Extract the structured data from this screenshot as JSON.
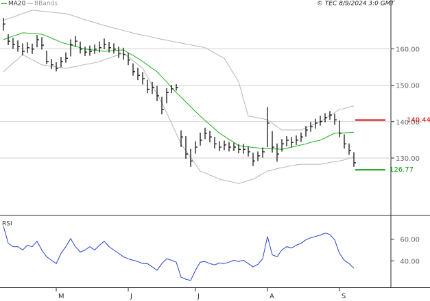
{
  "header": {
    "text": "© TEC 8/9/2024 3:0 GMT"
  },
  "chart_data": [
    {
      "type": "hlc",
      "color": "#000000",
      "grid": true,
      "ylim": [
        114.6,
        173.4
      ],
      "yticks": [
        {
          "value": 130,
          "label": "130.00"
        },
        {
          "value": 140,
          "label": "140.00"
        },
        {
          "value": 150,
          "label": "150.00"
        },
        {
          "value": 160,
          "label": "160.00"
        }
      ],
      "close": [
        166.8,
        162.1,
        161.2,
        160.6,
        159.3,
        160.3,
        159.9,
        162.5,
        161.0,
        156.5,
        155.6,
        154.6,
        156.5,
        157.4,
        161.2,
        162.1,
        159.9,
        159.1,
        159.3,
        159.9,
        160.3,
        161.2,
        160.3,
        159.9,
        158.8,
        158.4,
        156.9,
        153.7,
        152.7,
        151.8,
        148.9,
        149.4,
        147.1,
        143.3,
        148.0,
        149.0,
        149.4,
        135.8,
        131.1,
        129.2,
        133.0,
        134.9,
        136.8,
        135.8,
        133.9,
        133.0,
        133.6,
        133.0,
        133.0,
        132.4,
        132.4,
        131.7,
        129.2,
        130.6,
        131.7,
        139.6,
        133.0,
        131.1,
        133.9,
        134.9,
        134.3,
        134.9,
        135.8,
        137.7,
        138.6,
        139.6,
        140.0,
        141.1,
        141.8,
        140.5,
        136.8,
        133.9,
        132.1,
        128.7
      ],
      "high": [
        168.5,
        164.0,
        163.0,
        162.3,
        161.5,
        161.8,
        161.4,
        163.8,
        163.2,
        159.5,
        157.2,
        156.3,
        157.8,
        159.0,
        162.6,
        163.5,
        162.0,
        160.6,
        160.9,
        161.2,
        162.0,
        162.8,
        161.9,
        161.5,
        160.6,
        160.3,
        158.9,
        156.0,
        154.8,
        153.6,
        151.5,
        150.9,
        149.8,
        146.8,
        149.2,
        150.1,
        150.3,
        137.6,
        136.0,
        132.5,
        134.6,
        137.0,
        138.3,
        137.5,
        135.8,
        134.6,
        134.8,
        134.4,
        134.2,
        133.8,
        133.9,
        133.2,
        131.5,
        131.8,
        132.9,
        144.0,
        137.4,
        134.0,
        135.2,
        136.0,
        135.8,
        136.2,
        137.0,
        138.8,
        139.9,
        140.8,
        141.6,
        142.3,
        142.9,
        142.2,
        140.3,
        136.5,
        134.0,
        131.6
      ],
      "low": [
        165.0,
        161.0,
        160.0,
        159.2,
        158.2,
        158.9,
        158.6,
        160.4,
        159.8,
        155.8,
        154.4,
        153.8,
        154.9,
        156.2,
        157.9,
        160.6,
        158.7,
        158.0,
        158.1,
        158.6,
        159.0,
        159.9,
        159.0,
        158.7,
        157.5,
        157.0,
        155.5,
        152.6,
        151.4,
        150.2,
        147.8,
        147.6,
        145.6,
        142.0,
        145.0,
        147.8,
        148.5,
        133.0,
        129.8,
        127.6,
        131.2,
        133.4,
        135.2,
        134.3,
        132.6,
        131.9,
        132.2,
        131.8,
        131.9,
        131.3,
        131.2,
        130.4,
        127.8,
        129.2,
        130.1,
        133.0,
        131.5,
        129.0,
        131.8,
        133.2,
        133.0,
        133.6,
        134.4,
        135.9,
        137.2,
        138.1,
        138.9,
        139.8,
        140.5,
        139.1,
        135.7,
        132.6,
        130.9,
        127.6
      ],
      "series": [
        {
          "name": "MA20",
          "color": "#19b019",
          "values": [
            162.5,
            163.0,
            163.5,
            163.9,
            164.4,
            164.3,
            164.2,
            164.1,
            164.0,
            163.5,
            162.9,
            162.4,
            161.8,
            161.4,
            161.0,
            160.7,
            160.3,
            159.9,
            159.8,
            159.6,
            159.5,
            159.3,
            159.4,
            159.5,
            159.6,
            159.7,
            158.9,
            158.2,
            157.4,
            156.5,
            155.6,
            154.6,
            153.7,
            152.3,
            150.9,
            149.4,
            148.0,
            146.7,
            145.4,
            144.1,
            142.8,
            141.5,
            140.3,
            139.2,
            138.0,
            136.8,
            136.0,
            135.1,
            134.3,
            133.4,
            133.2,
            133.1,
            132.9,
            132.8,
            132.6,
            132.6,
            132.5,
            132.5,
            132.4,
            132.7,
            133.0,
            133.3,
            133.6,
            133.9,
            134.3,
            134.6,
            134.9,
            135.5,
            136.2,
            136.8,
            136.9,
            136.9,
            137.0,
            137.1
          ]
        },
        {
          "name": "BBands",
          "color": "#b4b4b4",
          "upper": [
            167.8,
            168.3,
            168.7,
            169.2,
            169.7,
            170.1,
            170.6,
            170.5,
            170.3,
            170.2,
            170.1,
            169.9,
            169.8,
            169.7,
            169.3,
            168.9,
            168.4,
            168.0,
            167.6,
            167.2,
            166.8,
            166.4,
            166.1,
            165.7,
            165.4,
            165.0,
            164.7,
            164.3,
            164.0,
            163.7,
            163.5,
            163.2,
            162.9,
            162.6,
            162.4,
            162.1,
            161.8,
            161.6,
            161.3,
            161.1,
            160.8,
            160.6,
            160.3,
            159.6,
            158.8,
            158.1,
            157.4,
            155.2,
            153.1,
            150.9,
            146.2,
            141.5,
            141.3,
            141.0,
            140.8,
            140.5,
            139.6,
            138.6,
            137.7,
            137.7,
            137.7,
            137.7,
            137.7,
            138.3,
            138.9,
            139.4,
            140.0,
            140.8,
            141.7,
            142.5,
            143.3,
            143.6,
            144.0,
            144.3
          ],
          "lower": [
            153.7,
            154.9,
            156.1,
            157.2,
            158.4,
            157.7,
            157.0,
            156.3,
            155.6,
            155.4,
            155.2,
            155.0,
            154.8,
            154.6,
            154.9,
            155.1,
            155.4,
            155.7,
            155.9,
            156.2,
            156.5,
            157.0,
            157.4,
            157.9,
            158.3,
            158.8,
            157.8,
            156.7,
            155.7,
            154.6,
            152.3,
            149.9,
            147.6,
            145.2,
            142.4,
            139.6,
            136.7,
            133.9,
            132.0,
            130.2,
            128.3,
            126.4,
            125.9,
            125.3,
            124.8,
            124.2,
            123.9,
            123.6,
            123.3,
            123.0,
            123.4,
            123.8,
            124.2,
            124.9,
            125.7,
            126.4,
            126.7,
            127.1,
            127.4,
            127.6,
            127.9,
            128.1,
            128.3,
            128.3,
            128.3,
            128.3,
            128.3,
            128.5,
            128.8,
            129.0,
            129.2,
            129.5,
            129.9,
            130.2
          ]
        }
      ],
      "levels": [
        {
          "value": 140.44,
          "label": "140.44",
          "color": "#cc0000"
        },
        {
          "value": 126.77,
          "label": "126.77",
          "color": "#009900"
        }
      ]
    },
    {
      "type": "line",
      "title": "RSI",
      "color": "#1f3fcf",
      "grid": false,
      "ylim": [
        15.6,
        81.25
      ],
      "yticks": [
        {
          "value": 40,
          "label": "40.00"
        },
        {
          "value": 60,
          "label": "60.00"
        }
      ],
      "categories": [
        null,
        null,
        null,
        null,
        null,
        null,
        null,
        null,
        null,
        null,
        null,
        "M",
        null,
        null,
        null,
        null,
        null,
        null,
        null,
        null,
        null,
        null,
        null,
        null,
        null,
        null,
        "J",
        null,
        null,
        null,
        null,
        null,
        null,
        null,
        null,
        null,
        null,
        null,
        null,
        null,
        "J",
        null,
        null,
        null,
        null,
        null,
        null,
        null,
        null,
        null,
        null,
        null,
        null,
        null,
        null,
        "A",
        null,
        null,
        null,
        null,
        null,
        null,
        null,
        null,
        null,
        null,
        null,
        null,
        null,
        null,
        "S",
        null,
        null,
        null
      ],
      "values": [
        71.9,
        56.3,
        53.1,
        53.1,
        50.0,
        54.4,
        53.1,
        58.1,
        50.0,
        43.8,
        40.6,
        37.5,
        46.9,
        53.1,
        60.6,
        53.1,
        48.1,
        50.0,
        53.1,
        50.0,
        54.4,
        58.1,
        53.1,
        50.0,
        46.9,
        43.8,
        41.9,
        40.6,
        39.4,
        37.5,
        37.5,
        34.4,
        31.3,
        37.5,
        41.9,
        40.6,
        38.8,
        25.0,
        23.1,
        21.9,
        31.3,
        38.8,
        39.4,
        37.5,
        36.3,
        38.1,
        37.5,
        38.8,
        40.6,
        39.4,
        40.6,
        37.5,
        34.4,
        36.9,
        41.9,
        62.5,
        45.6,
        43.8,
        50.0,
        53.1,
        51.9,
        54.4,
        56.3,
        59.4,
        61.3,
        62.5,
        63.8,
        65.6,
        64.4,
        59.4,
        46.9,
        40.6,
        37.5,
        33.1
      ]
    }
  ]
}
